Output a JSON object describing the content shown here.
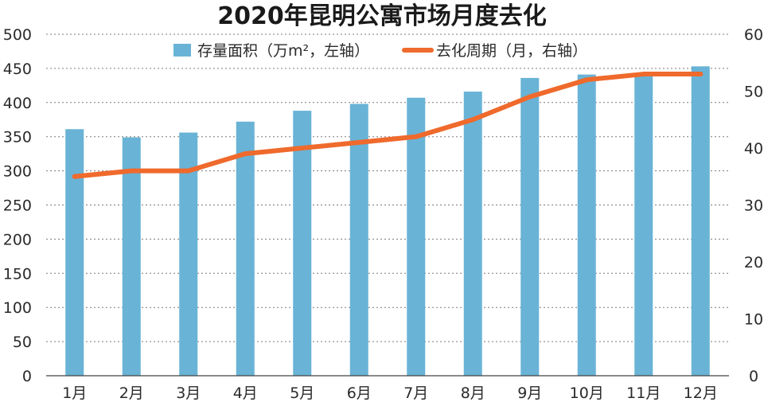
{
  "chart_data": {
    "type": "bar",
    "title": "2020年昆明公寓市场月度去化",
    "categories": [
      "1月",
      "2月",
      "3月",
      "4月",
      "5月",
      "6月",
      "7月",
      "8月",
      "9月",
      "10月",
      "11月",
      "12月"
    ],
    "series": [
      {
        "name": "存量面积（万m²，左轴）",
        "type": "bar",
        "axis": "left",
        "color": "#69b3d6",
        "values": [
          361,
          349,
          356,
          372,
          388,
          398,
          407,
          416,
          436,
          441,
          443,
          453
        ]
      },
      {
        "name": "去化周期（月，右轴）",
        "type": "line",
        "axis": "right",
        "color": "#ef6a2c",
        "values": [
          35,
          36,
          36,
          39,
          40,
          41,
          42,
          45,
          49,
          52,
          53,
          53
        ]
      }
    ],
    "y_left": {
      "min": 0,
      "max": 500,
      "ticks": [
        0,
        50,
        100,
        150,
        200,
        250,
        300,
        350,
        400,
        450,
        500
      ]
    },
    "y_right": {
      "min": 0,
      "max": 60,
      "ticks": [
        0,
        10,
        20,
        30,
        40,
        50,
        60
      ]
    },
    "grid": true,
    "legend_position": "top-center"
  }
}
